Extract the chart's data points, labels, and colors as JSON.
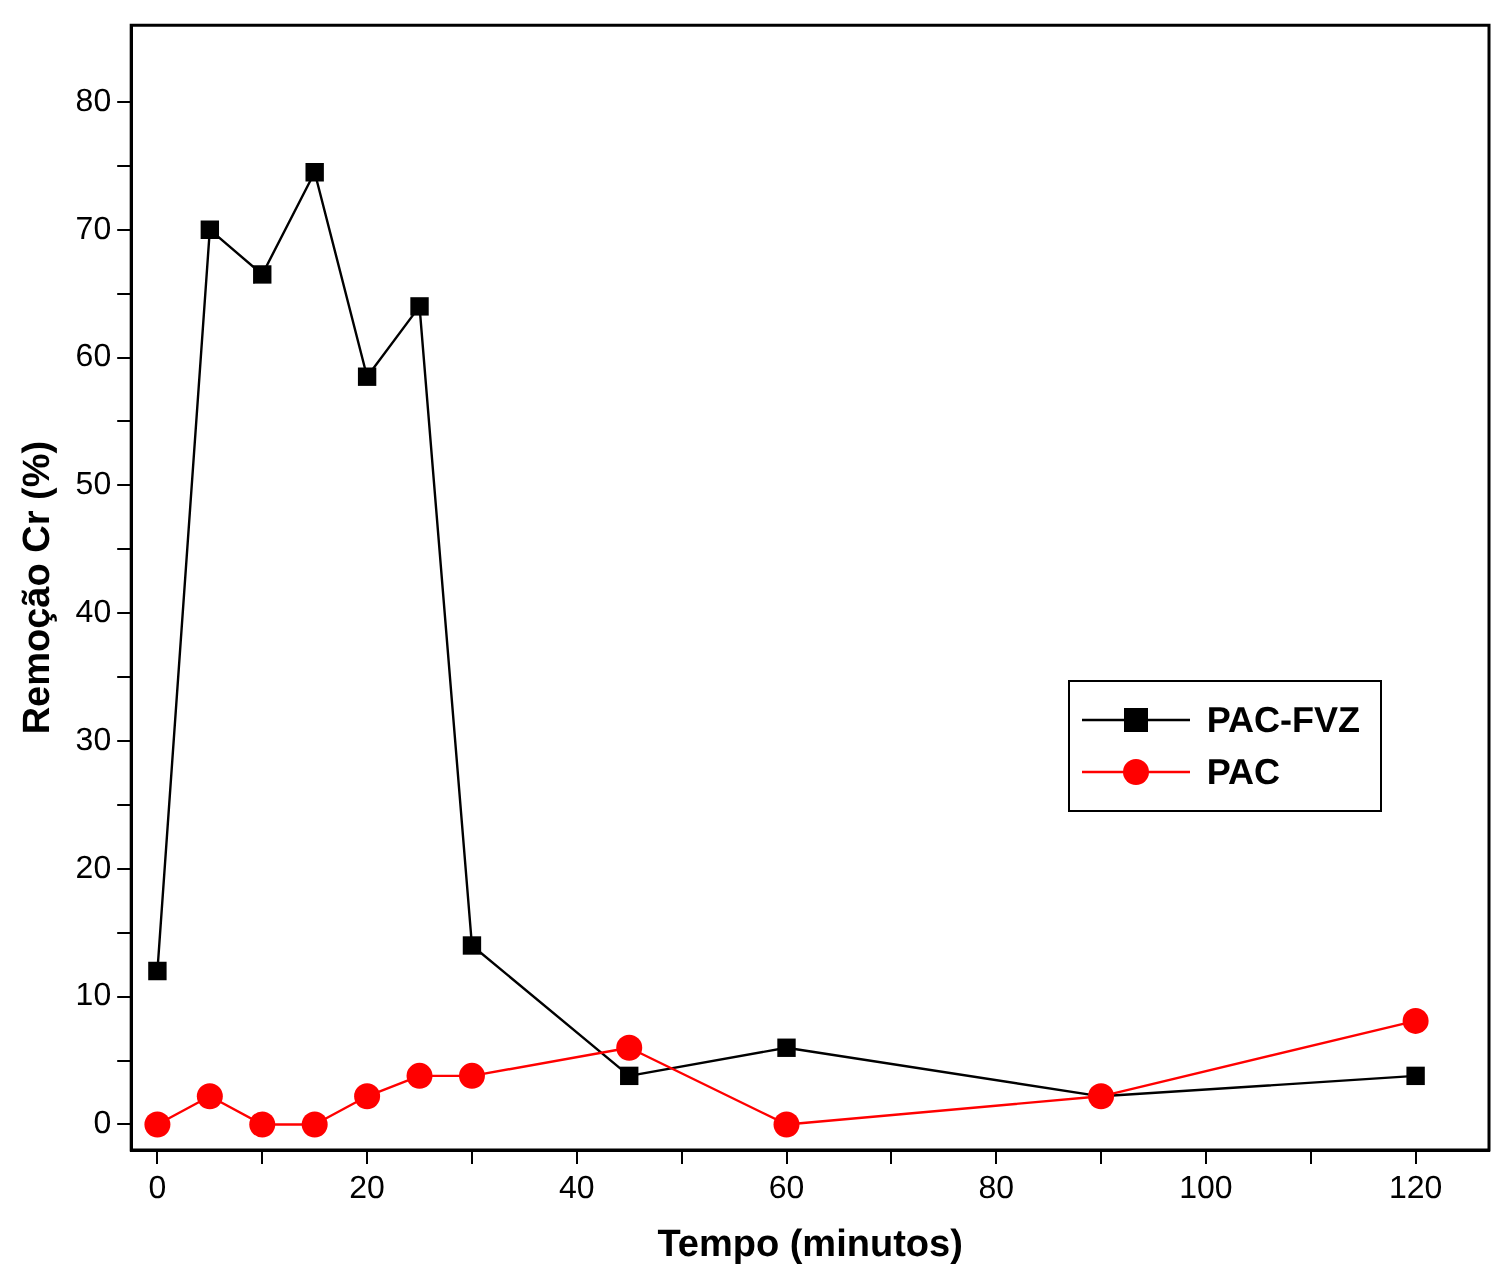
{
  "chart_data": {
    "type": "line",
    "xlabel": "Tempo (minutos)",
    "ylabel": "Remoção Cr (%)",
    "xlim": [
      -2.5,
      127
    ],
    "ylim": [
      -2,
      86
    ],
    "xticks": [
      0,
      {
        "value": 10,
        "label": null
      },
      20,
      {
        "value": 30,
        "label": null
      },
      40,
      {
        "value": 50,
        "label": null
      },
      60,
      {
        "value": 70,
        "label": null
      },
      80,
      {
        "value": 90,
        "label": null
      },
      100,
      {
        "value": 110,
        "label": null
      },
      120
    ],
    "yticks": [
      0,
      {
        "value": 5,
        "label": null
      },
      10,
      {
        "value": 15,
        "label": null
      },
      20,
      {
        "value": 25,
        "label": null
      },
      30,
      {
        "value": 35,
        "label": null
      },
      40,
      {
        "value": 45,
        "label": null
      },
      50,
      {
        "value": 55,
        "label": null
      },
      60,
      {
        "value": 65,
        "label": null
      },
      70,
      {
        "value": 75,
        "label": null
      },
      80
    ],
    "x": [
      0,
      5,
      10,
      15,
      20,
      25,
      30,
      45,
      60,
      90,
      120
    ],
    "series": [
      {
        "name": "PAC-FVZ",
        "color": "#000000",
        "marker": "square",
        "values": [
          12,
          70,
          66.5,
          74.5,
          58.5,
          64,
          14,
          3.8,
          6,
          2.2,
          3.8
        ]
      },
      {
        "name": "PAC",
        "color": "#ff0000",
        "marker": "circle",
        "values": [
          0,
          2.2,
          0,
          0,
          2.2,
          3.8,
          3.8,
          6,
          0,
          2.2,
          8.1
        ]
      }
    ],
    "grid": false,
    "legend": "center right",
    "line_style": "solid"
  }
}
